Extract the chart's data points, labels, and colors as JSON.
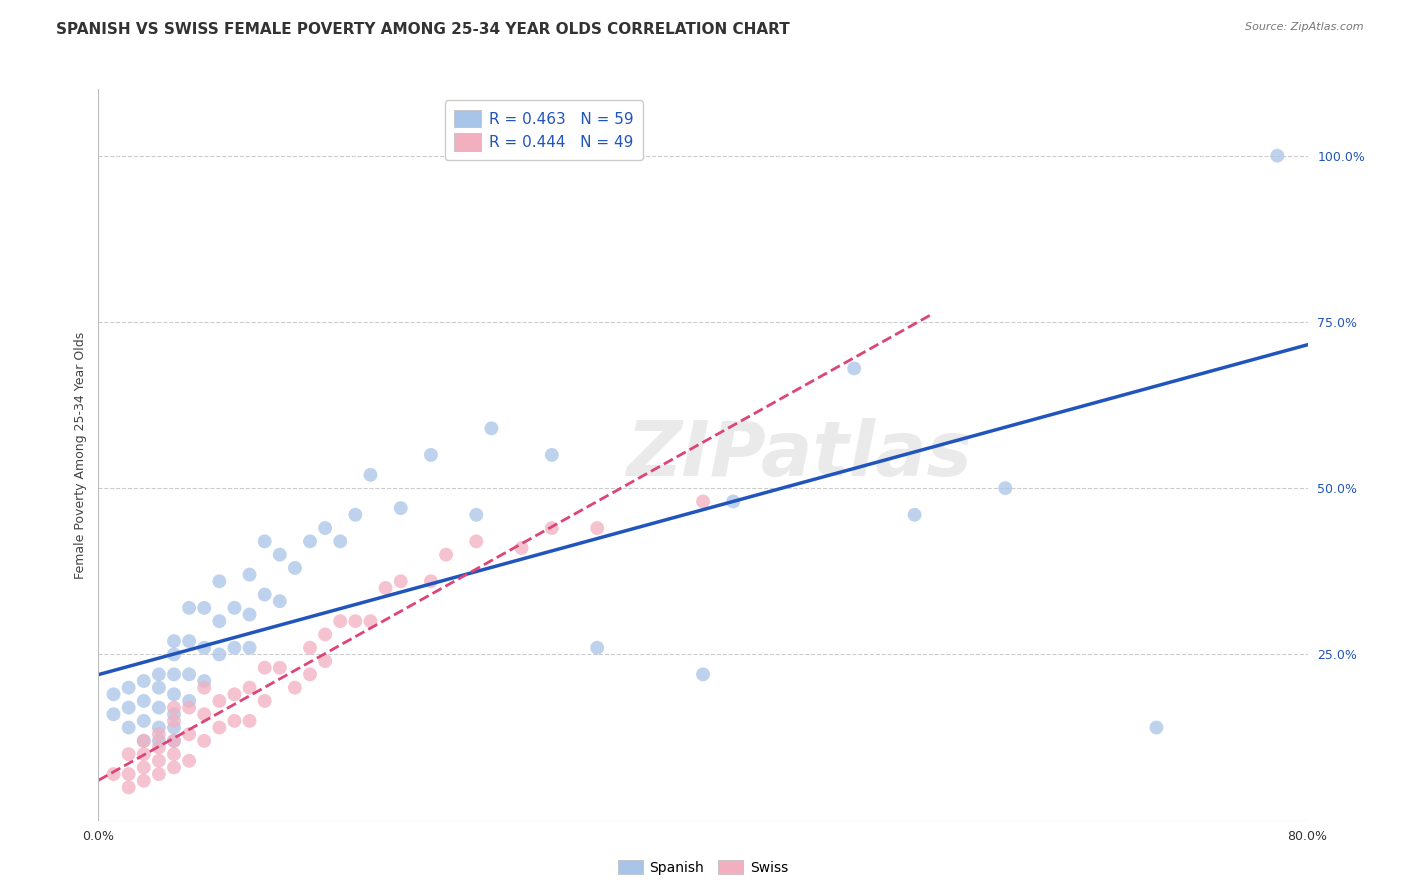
{
  "title": "SPANISH VS SWISS FEMALE POVERTY AMONG 25-34 YEAR OLDS CORRELATION CHART",
  "source": "Source: ZipAtlas.com",
  "ylabel": "Female Poverty Among 25-34 Year Olds",
  "xlim": [
    0.0,
    0.8
  ],
  "ylim": [
    0.0,
    1.1
  ],
  "ytick_positions": [
    0.0,
    0.25,
    0.5,
    0.75,
    1.0
  ],
  "ytick_labels_right": [
    "",
    "25.0%",
    "50.0%",
    "75.0%",
    "100.0%"
  ],
  "xtick_positions": [
    0.0,
    0.16,
    0.32,
    0.48,
    0.64,
    0.8
  ],
  "xtick_labels": [
    "0.0%",
    "",
    "",
    "",
    "",
    "80.0%"
  ],
  "spanish_R": 0.463,
  "spanish_N": 59,
  "swiss_R": 0.444,
  "swiss_N": 49,
  "spanish_color": "#a8c4e8",
  "swiss_color": "#f2afc0",
  "spanish_line_color": "#2255bb",
  "swiss_line_color": "#dd4477",
  "background_color": "#ffffff",
  "watermark": "ZIPatlas",
  "spanish_x": [
    0.01,
    0.01,
    0.02,
    0.02,
    0.02,
    0.03,
    0.03,
    0.03,
    0.03,
    0.04,
    0.04,
    0.04,
    0.04,
    0.04,
    0.05,
    0.05,
    0.05,
    0.05,
    0.05,
    0.05,
    0.05,
    0.06,
    0.06,
    0.06,
    0.06,
    0.07,
    0.07,
    0.07,
    0.08,
    0.08,
    0.08,
    0.09,
    0.09,
    0.1,
    0.1,
    0.1,
    0.11,
    0.11,
    0.12,
    0.12,
    0.13,
    0.14,
    0.15,
    0.16,
    0.17,
    0.18,
    0.2,
    0.22,
    0.25,
    0.26,
    0.3,
    0.33,
    0.4,
    0.42,
    0.5,
    0.54,
    0.6,
    0.7,
    0.78
  ],
  "spanish_y": [
    0.16,
    0.19,
    0.14,
    0.17,
    0.2,
    0.12,
    0.15,
    0.18,
    0.21,
    0.12,
    0.14,
    0.17,
    0.2,
    0.22,
    0.12,
    0.14,
    0.16,
    0.19,
    0.22,
    0.25,
    0.27,
    0.18,
    0.22,
    0.27,
    0.32,
    0.21,
    0.26,
    0.32,
    0.25,
    0.3,
    0.36,
    0.26,
    0.32,
    0.26,
    0.31,
    0.37,
    0.34,
    0.42,
    0.33,
    0.4,
    0.38,
    0.42,
    0.44,
    0.42,
    0.46,
    0.52,
    0.47,
    0.55,
    0.46,
    0.59,
    0.55,
    0.26,
    0.22,
    0.48,
    0.68,
    0.46,
    0.5,
    0.14,
    1.0
  ],
  "swiss_x": [
    0.01,
    0.02,
    0.02,
    0.02,
    0.03,
    0.03,
    0.03,
    0.03,
    0.04,
    0.04,
    0.04,
    0.04,
    0.05,
    0.05,
    0.05,
    0.05,
    0.05,
    0.06,
    0.06,
    0.06,
    0.07,
    0.07,
    0.07,
    0.08,
    0.08,
    0.09,
    0.09,
    0.1,
    0.1,
    0.11,
    0.11,
    0.12,
    0.13,
    0.14,
    0.14,
    0.15,
    0.15,
    0.16,
    0.17,
    0.18,
    0.19,
    0.2,
    0.22,
    0.23,
    0.25,
    0.28,
    0.3,
    0.33,
    0.4
  ],
  "swiss_y": [
    0.07,
    0.05,
    0.07,
    0.1,
    0.06,
    0.08,
    0.1,
    0.12,
    0.07,
    0.09,
    0.11,
    0.13,
    0.08,
    0.1,
    0.12,
    0.15,
    0.17,
    0.09,
    0.13,
    0.17,
    0.12,
    0.16,
    0.2,
    0.14,
    0.18,
    0.15,
    0.19,
    0.15,
    0.2,
    0.18,
    0.23,
    0.23,
    0.2,
    0.22,
    0.26,
    0.24,
    0.28,
    0.3,
    0.3,
    0.3,
    0.35,
    0.36,
    0.36,
    0.4,
    0.42,
    0.41,
    0.44,
    0.44,
    0.48
  ],
  "grid_color": "#cccccc",
  "title_fontsize": 11,
  "axis_label_fontsize": 9,
  "tick_fontsize": 9,
  "legend_fontsize": 11,
  "tick_color": "#2255bb"
}
